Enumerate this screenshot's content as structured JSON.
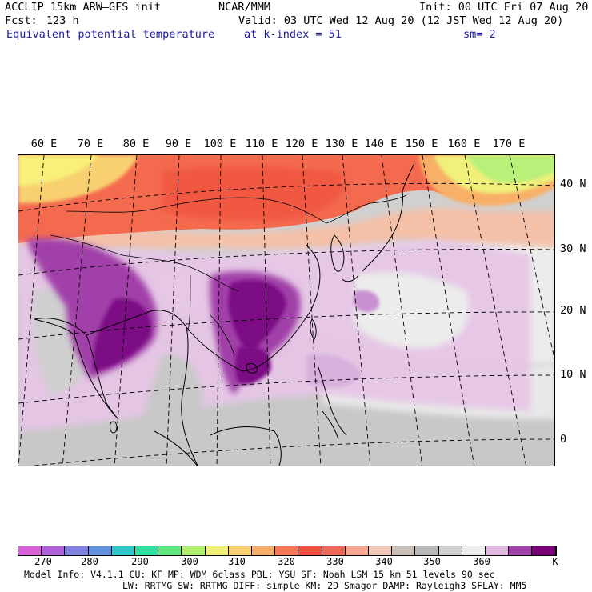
{
  "header": {
    "model": "ACCLIP 15km ARW–GFS init",
    "center": "NCAR/MMM",
    "init": "Init: 00 UTC Fri 07 Aug 20",
    "fcst_label": "Fcst:",
    "fcst_value": "123 h",
    "valid": "Valid: 03 UTC Wed 12 Aug 20 (12 JST Wed 12 Aug 20)",
    "field": "Equivalent potential temperature",
    "level": "at k-index =  51",
    "smooth": "sm= 2"
  },
  "map": {
    "lon_labels": [
      "60 E",
      "70 E",
      "80 E",
      "90 E",
      "100 E",
      "110 E",
      "120 E",
      "130 E",
      "140 E",
      "150 E",
      "160 E",
      "170 E"
    ],
    "lat_labels": [
      "40 N",
      "30 N",
      "20 N",
      "10 N",
      "0"
    ]
  },
  "colorbar": {
    "colors": [
      "#d860d8",
      "#b060d8",
      "#8080e0",
      "#6090e0",
      "#30c8c8",
      "#30e0a0",
      "#60e880",
      "#b0f070",
      "#f0f078",
      "#f8d070",
      "#f8b068",
      "#f87858",
      "#f05040",
      "#f06858",
      "#f8a890",
      "#f0c8b8",
      "#c8c0b8",
      "#b8b8b8",
      "#d0d0d0",
      "#eeeeee",
      "#e0b8e0",
      "#a040a8",
      "#780078"
    ],
    "labels": [
      "270",
      "280",
      "290",
      "300",
      "310",
      "320",
      "330",
      "340",
      "350",
      "360"
    ],
    "unit": "K"
  },
  "footer": {
    "line1": "Model Info: V4.1.1     CU: KF      MP: WDM 6class  PBL: YSU      SF: Noah LSM     15 km    51 levels   90 sec",
    "line2": "LW: RRTMG   SW: RRTMG  DIFF: simple KM: 2D Smagor DAMP: Rayleigh3  SFLAY: MM5"
  }
}
